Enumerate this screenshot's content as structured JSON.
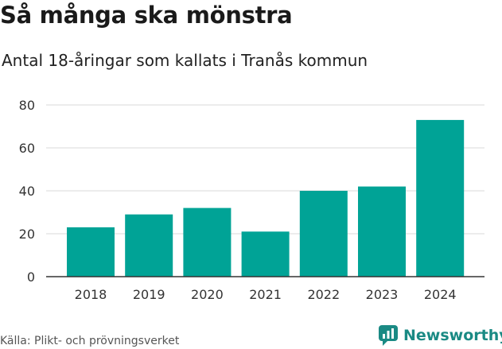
{
  "title": "Så många ska mönstra",
  "subtitle": "Antal 18-åringar som kallats i Tranås kommun",
  "source": "Källa: Plikt- och prövningsverket",
  "brand": {
    "name": "Newsworthy",
    "icon": "newsworthy-logo-icon"
  },
  "colors": {
    "bar": "#00a396",
    "grid": "#d9d9d9",
    "axis": "#333333",
    "brand": "#1a8a84"
  },
  "chart_data": {
    "type": "bar",
    "categories": [
      "2018",
      "2019",
      "2020",
      "2021",
      "2022",
      "2023",
      "2024"
    ],
    "values": [
      23,
      29,
      32,
      21,
      40,
      42,
      73
    ],
    "ylim": [
      0,
      80
    ],
    "yticks": [
      0,
      20,
      40,
      60,
      80
    ],
    "grid": true
  }
}
